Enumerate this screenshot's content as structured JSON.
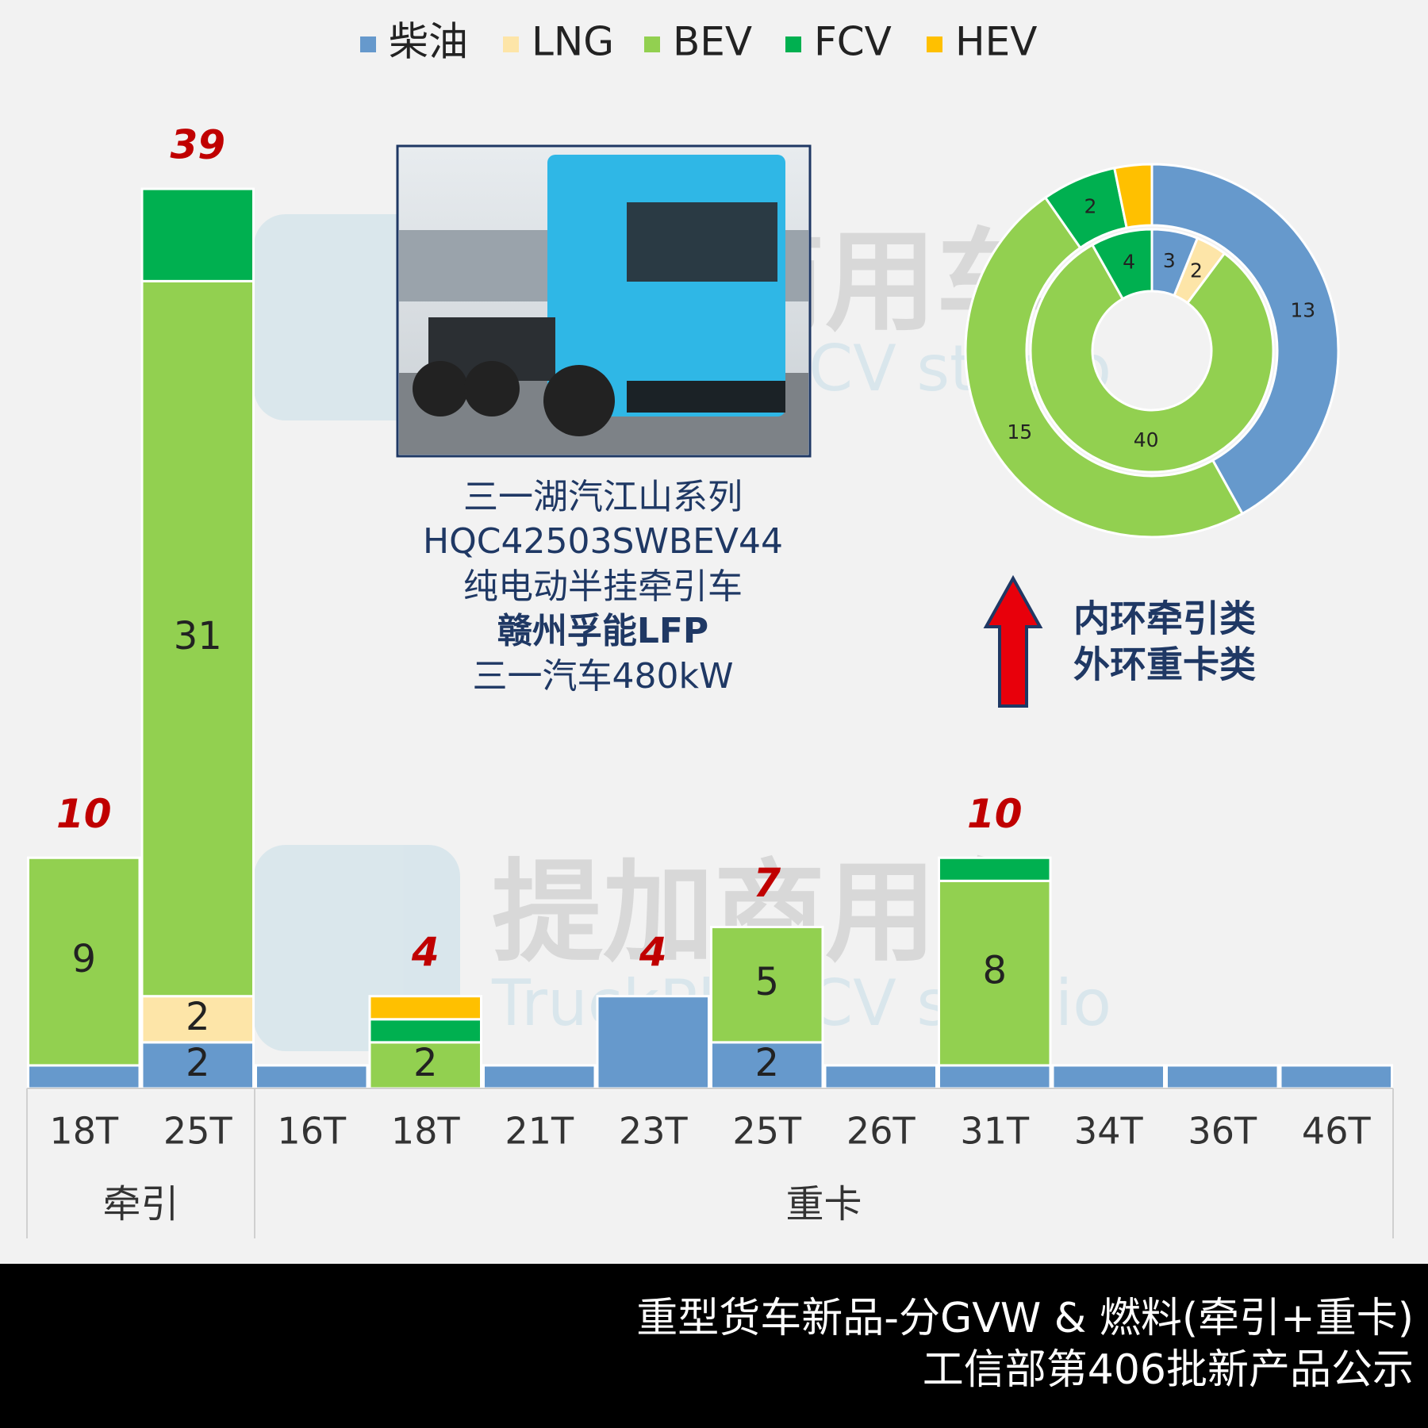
{
  "chart_data": [
    {
      "type": "bar",
      "stacked": true,
      "groups": [
        {
          "label": "牵引",
          "categories": [
            "18T",
            "25T"
          ]
        },
        {
          "label": "重卡",
          "categories": [
            "16T",
            "18T",
            "21T",
            "23T",
            "25T",
            "26T",
            "31T",
            "34T",
            "36T",
            "46T"
          ]
        }
      ],
      "series": [
        {
          "name": "柴油",
          "color": "#6699cc",
          "values": [
            1,
            2,
            1,
            0,
            1,
            4,
            2,
            1,
            1,
            1,
            1,
            1
          ],
          "value_labels": [
            null,
            "2",
            null,
            null,
            null,
            null,
            "2",
            null,
            null,
            null,
            null,
            null
          ]
        },
        {
          "name": "LNG",
          "color": "#fde5a8",
          "values": [
            0,
            2,
            0,
            0,
            0,
            0,
            0,
            0,
            0,
            0,
            0,
            0
          ],
          "value_labels": [
            null,
            "2",
            null,
            null,
            null,
            null,
            null,
            null,
            null,
            null,
            null,
            null
          ]
        },
        {
          "name": "BEV",
          "color": "#92d050",
          "values": [
            9,
            31,
            0,
            2,
            0,
            0,
            5,
            0,
            8,
            0,
            0,
            0
          ],
          "value_labels": [
            "9",
            "31",
            null,
            "2",
            null,
            null,
            "5",
            null,
            "8",
            null,
            null,
            null
          ]
        },
        {
          "name": "FCV",
          "color": "#00b050",
          "values": [
            0,
            4,
            0,
            1,
            0,
            0,
            0,
            0,
            1,
            0,
            0,
            0
          ],
          "value_labels": [
            null,
            null,
            null,
            null,
            null,
            null,
            null,
            null,
            null,
            null,
            null,
            null
          ]
        },
        {
          "name": "HEV",
          "color": "#ffc000",
          "values": [
            0,
            0,
            0,
            1,
            0,
            0,
            0,
            0,
            0,
            0,
            0,
            0
          ],
          "value_labels": [
            null,
            null,
            null,
            null,
            null,
            null,
            null,
            null,
            null,
            null,
            null,
            null
          ]
        }
      ],
      "totals": [
        10,
        39,
        null,
        4,
        null,
        4,
        7,
        null,
        10,
        null,
        null,
        null
      ],
      "ylim": [
        0,
        40
      ]
    },
    {
      "type": "donut",
      "colors": [
        "#6699cc",
        "#fde5a8",
        "#92d050",
        "#00b050",
        "#ffc000"
      ],
      "rings": [
        {
          "values": [
            3,
            2,
            40,
            4,
            0
          ],
          "value_labels": [
            "3",
            "2",
            "40",
            "4",
            null
          ]
        },
        {
          "values": [
            13,
            0,
            15,
            2,
            1
          ],
          "value_labels": [
            "13",
            null,
            "15",
            "2",
            null
          ]
        }
      ]
    }
  ],
  "image": {
    "caption": [
      "三一湖汽江山系列",
      "HQC42503SWBEV44",
      "纯电动半挂牵引车",
      "赣州孚能LFP",
      "三一汽车480kW"
    ]
  },
  "annotation": [
    "内环牵引类",
    "外环重卡类"
  ],
  "watermark": [
    "提加商用车",
    "TruckPlus CV studio"
  ],
  "footer": [
    "重型货车新品-分GVW & 燃料(牵引+重卡)",
    "工信部第406批新产品公示"
  ]
}
